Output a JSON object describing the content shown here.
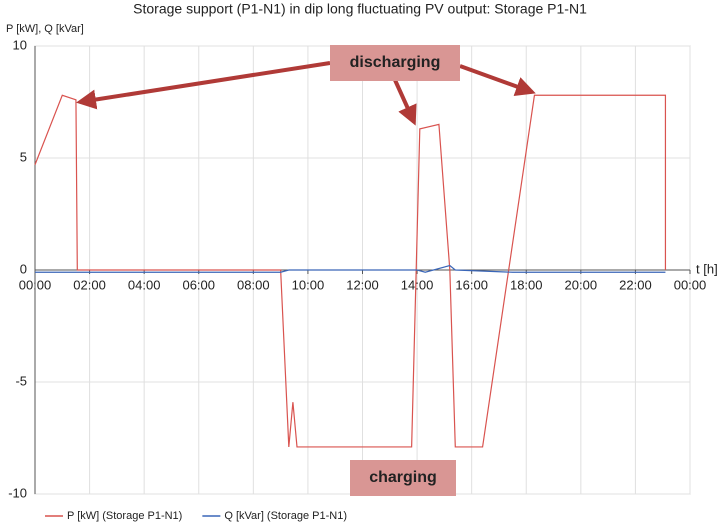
{
  "chart_data": {
    "type": "line",
    "title": "Storage support (P1-N1) in dip long fluctuating PV output: Storage P1-N1",
    "y_label": "P [kW], Q [kVar]",
    "x_label": "t [h]",
    "xlim": [
      0,
      24
    ],
    "ylim": [
      -10,
      10
    ],
    "xticks": [
      {
        "value": 0,
        "label": "00:00"
      },
      {
        "value": 2,
        "label": "02:00"
      },
      {
        "value": 4,
        "label": "04:00"
      },
      {
        "value": 6,
        "label": "06:00"
      },
      {
        "value": 8,
        "label": "08:00"
      },
      {
        "value": 10,
        "label": "10:00"
      },
      {
        "value": 12,
        "label": "12:00"
      },
      {
        "value": 14,
        "label": "14:00"
      },
      {
        "value": 16,
        "label": "16:00"
      },
      {
        "value": 18,
        "label": "18:00"
      },
      {
        "value": 20,
        "label": "20:00"
      },
      {
        "value": 22,
        "label": "22:00"
      },
      {
        "value": 24,
        "label": "00:00"
      }
    ],
    "yticks": [
      -10,
      -5,
      0,
      5,
      10
    ],
    "grid": true,
    "series": [
      {
        "name": "P [kW] (Storage P1-N1)",
        "color": "#d9534f",
        "x": [
          0,
          1.0,
          1.5,
          1.55,
          9.0,
          9.3,
          9.45,
          9.6,
          13.8,
          14.1,
          14.8,
          15.2,
          15.4,
          16.4,
          18.3,
          23.1,
          23.1
        ],
        "values": [
          4.7,
          7.8,
          7.6,
          0,
          0,
          -7.9,
          -5.9,
          -7.9,
          -7.9,
          6.3,
          6.5,
          0,
          -7.9,
          -7.9,
          7.8,
          7.8,
          0
        ]
      },
      {
        "name": "Q [kVar] (Storage P1-N1)",
        "color": "#3a66b8",
        "x": [
          0,
          9.0,
          9.3,
          14.0,
          14.3,
          15.2,
          15.4,
          17.5,
          18.3,
          23.1
        ],
        "values": [
          -0.1,
          -0.1,
          0,
          0,
          -0.1,
          0.2,
          0,
          -0.1,
          -0.1,
          -0.1
        ]
      }
    ],
    "annotations": [
      "discharging",
      "charging"
    ]
  }
}
